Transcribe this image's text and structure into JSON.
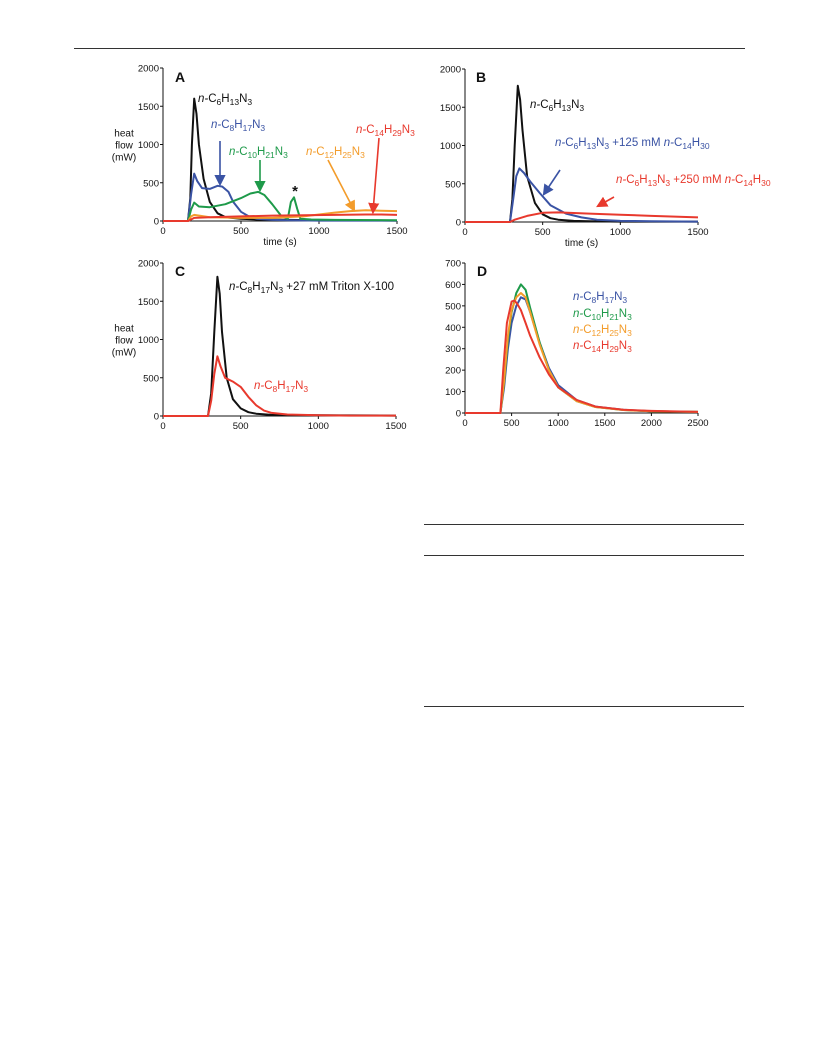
{
  "page": {
    "rules": [
      "top-rule",
      "table-rule-1",
      "table-rule-2",
      "table-rule-3"
    ]
  },
  "chart_data": [
    {
      "panel": "A",
      "type": "line",
      "xlabel": "time (s)",
      "ylabel": [
        "heat",
        "flow",
        "(mW)"
      ],
      "xlim": [
        0,
        1500
      ],
      "ylim": [
        0,
        2000
      ],
      "xticks": [
        0,
        500,
        1000,
        1500
      ],
      "yticks": [
        0,
        500,
        1000,
        1500,
        2000
      ],
      "annotation": "*",
      "series": [
        {
          "name": "n-C6H13N3",
          "color": "#111111",
          "label": [
            {
              "t": "n-",
              "i": true
            },
            {
              "t": "C"
            },
            {
              "t": "6",
              "s": true
            },
            {
              "t": "H"
            },
            {
              "t": "13",
              "s": true
            },
            {
              "t": "N"
            },
            {
              "t": "3",
              "s": true
            }
          ],
          "x": [
            0,
            160,
            175,
            185,
            200,
            215,
            230,
            260,
            300,
            350,
            400,
            500,
            600,
            800,
            1000,
            1500
          ],
          "y": [
            0,
            0,
            300,
            1000,
            1600,
            1400,
            1000,
            550,
            250,
            100,
            50,
            30,
            20,
            15,
            10,
            5
          ]
        },
        {
          "name": "n-C8H17N3",
          "color": "#3a53a4",
          "label": [
            {
              "t": "n-",
              "i": true
            },
            {
              "t": "C"
            },
            {
              "t": "8",
              "s": true
            },
            {
              "t": "H"
            },
            {
              "t": "17",
              "s": true
            },
            {
              "t": "N"
            },
            {
              "t": "3",
              "s": true
            }
          ],
          "x": [
            0,
            160,
            180,
            200,
            220,
            250,
            300,
            350,
            380,
            420,
            450,
            500,
            550,
            600,
            700,
            800,
            1000,
            1500
          ],
          "y": [
            0,
            0,
            350,
            620,
            520,
            430,
            420,
            460,
            450,
            380,
            250,
            120,
            60,
            30,
            15,
            10,
            5,
            5
          ]
        },
        {
          "name": "n-C10H21N3",
          "color": "#1e9a4a",
          "label": [
            {
              "t": "n-",
              "i": true
            },
            {
              "t": "C"
            },
            {
              "t": "10",
              "s": true
            },
            {
              "t": "H"
            },
            {
              "t": "21",
              "s": true
            },
            {
              "t": "N"
            },
            {
              "t": "3",
              "s": true
            }
          ],
          "x": [
            0,
            160,
            180,
            200,
            230,
            300,
            400,
            500,
            560,
            610,
            650,
            700,
            760,
            800,
            820,
            840,
            860,
            880,
            950,
            1100,
            1500
          ],
          "y": [
            0,
            0,
            150,
            240,
            190,
            180,
            220,
            300,
            360,
            380,
            340,
            220,
            60,
            30,
            250,
            310,
            160,
            30,
            20,
            15,
            10
          ]
        },
        {
          "name": "n-C12H25N3",
          "color": "#f39c2b",
          "label": [
            {
              "t": "n-",
              "i": true
            },
            {
              "t": "C"
            },
            {
              "t": "12",
              "s": true
            },
            {
              "t": "H"
            },
            {
              "t": "25",
              "s": true
            },
            {
              "t": "N"
            },
            {
              "t": "3",
              "s": true
            }
          ],
          "x": [
            0,
            160,
            180,
            200,
            300,
            500,
            700,
            900,
            1100,
            1200,
            1300,
            1400,
            1500
          ],
          "y": [
            0,
            0,
            60,
            80,
            50,
            40,
            40,
            60,
            110,
            130,
            140,
            135,
            130
          ]
        },
        {
          "name": "n-C14H29N3",
          "color": "#e8392d",
          "label": [
            {
              "t": "n-",
              "i": true
            },
            {
              "t": "C"
            },
            {
              "t": "14",
              "s": true
            },
            {
              "t": "H"
            },
            {
              "t": "29",
              "s": true
            },
            {
              "t": "N"
            },
            {
              "t": "3",
              "s": true
            }
          ],
          "x": [
            0,
            160,
            200,
            300,
            500,
            700,
            900,
            1100,
            1300,
            1400,
            1500
          ],
          "y": [
            0,
            0,
            40,
            50,
            60,
            70,
            75,
            80,
            85,
            85,
            80
          ]
        }
      ]
    },
    {
      "panel": "B",
      "type": "line",
      "xlabel": "time (s)",
      "ylabel": [],
      "xlim": [
        0,
        1500
      ],
      "ylim": [
        0,
        2000
      ],
      "xticks": [
        0,
        500,
        1000,
        1500
      ],
      "yticks": [
        0,
        500,
        1000,
        1500,
        2000
      ],
      "series": [
        {
          "name": "n-C6H13N3",
          "color": "#111111",
          "label": [
            {
              "t": "n-",
              "i": true
            },
            {
              "t": "C"
            },
            {
              "t": "6",
              "s": true
            },
            {
              "t": "H"
            },
            {
              "t": "13",
              "s": true
            },
            {
              "t": "N"
            },
            {
              "t": "3",
              "s": true
            }
          ],
          "x": [
            0,
            290,
            305,
            320,
            340,
            355,
            370,
            400,
            450,
            500,
            550,
            600,
            700,
            800,
            1000,
            1500
          ],
          "y": [
            0,
            0,
            300,
            1000,
            1780,
            1600,
            1200,
            600,
            250,
            100,
            50,
            30,
            15,
            10,
            5,
            5
          ]
        },
        {
          "name": "n-C6H13N3 + 125 mM n-C14H30",
          "color": "#3a53a4",
          "label": [
            {
              "t": "n-",
              "i": true
            },
            {
              "t": "C"
            },
            {
              "t": "6",
              "s": true
            },
            {
              "t": "H"
            },
            {
              "t": "13",
              "s": true
            },
            {
              "t": "N"
            },
            {
              "t": "3",
              "s": true
            },
            {
              "t": " +"
            },
            {
              "br": true
            },
            {
              "t": "125 mM "
            },
            {
              "t": "n-",
              "i": true
            },
            {
              "t": "C"
            },
            {
              "t": "14",
              "s": true
            },
            {
              "t": "H"
            },
            {
              "t": "30",
              "s": true
            }
          ],
          "x": [
            0,
            290,
            310,
            330,
            350,
            380,
            420,
            480,
            550,
            650,
            750,
            850,
            1000,
            1200,
            1500
          ],
          "y": [
            0,
            0,
            300,
            600,
            700,
            640,
            530,
            380,
            220,
            110,
            60,
            30,
            15,
            10,
            5
          ]
        },
        {
          "name": "n-C6H13N3 + 250 mM n-C14H30",
          "color": "#e8392d",
          "label": [
            {
              "t": "n-",
              "i": true
            },
            {
              "t": "C"
            },
            {
              "t": "6",
              "s": true
            },
            {
              "t": "H"
            },
            {
              "t": "13",
              "s": true
            },
            {
              "t": "N"
            },
            {
              "t": "3",
              "s": true
            },
            {
              "t": " +"
            },
            {
              "br": true
            },
            {
              "t": "250 mM "
            },
            {
              "t": "n-",
              "i": true
            },
            {
              "t": "C"
            },
            {
              "t": "14",
              "s": true
            },
            {
              "t": "H"
            },
            {
              "t": "30",
              "s": true
            }
          ],
          "x": [
            0,
            290,
            320,
            400,
            500,
            600,
            800,
            1000,
            1200,
            1500
          ],
          "y": [
            0,
            0,
            30,
            80,
            120,
            125,
            110,
            95,
            80,
            60
          ]
        }
      ]
    },
    {
      "panel": "C",
      "type": "line",
      "xlabel": "",
      "ylabel": [
        "heat",
        "flow",
        "(mW)"
      ],
      "xlim": [
        0,
        1500
      ],
      "ylim": [
        0,
        2000
      ],
      "xticks": [
        0,
        500,
        1000,
        1500
      ],
      "yticks": [
        0,
        500,
        1000,
        1500,
        2000
      ],
      "series": [
        {
          "name": "n-C8H17N3 + 27 mM Triton X-100",
          "color": "#111111",
          "label": [
            {
              "t": "n-",
              "i": true
            },
            {
              "t": "C"
            },
            {
              "t": "8",
              "s": true
            },
            {
              "t": "H"
            },
            {
              "t": "17",
              "s": true
            },
            {
              "t": "N"
            },
            {
              "t": "3",
              "s": true
            },
            {
              "t": " +"
            },
            {
              "br": true
            },
            {
              "t": "27 mM Triton X-100"
            }
          ],
          "x": [
            0,
            290,
            310,
            330,
            350,
            365,
            380,
            410,
            450,
            500,
            550,
            600,
            700,
            1000,
            1500
          ],
          "y": [
            0,
            0,
            300,
            1100,
            1820,
            1600,
            1100,
            500,
            220,
            100,
            50,
            30,
            15,
            10,
            5
          ]
        },
        {
          "name": "n-C8H17N3",
          "color": "#e8392d",
          "label": [
            {
              "t": "n-",
              "i": true
            },
            {
              "t": "C"
            },
            {
              "t": "8",
              "s": true
            },
            {
              "t": "H"
            },
            {
              "t": "17",
              "s": true
            },
            {
              "t": "N"
            },
            {
              "t": "3",
              "s": true
            }
          ],
          "x": [
            0,
            290,
            310,
            330,
            350,
            370,
            400,
            450,
            500,
            550,
            600,
            650,
            700,
            800,
            1000,
            1200,
            1500
          ],
          "y": [
            0,
            0,
            200,
            550,
            780,
            650,
            500,
            450,
            380,
            250,
            140,
            70,
            40,
            20,
            10,
            5,
            5
          ]
        }
      ]
    },
    {
      "panel": "D",
      "type": "line",
      "xlabel": "",
      "ylabel": [],
      "xlim": [
        0,
        2500
      ],
      "ylim": [
        0,
        700
      ],
      "xticks": [
        0,
        500,
        1000,
        1500,
        2000,
        2500
      ],
      "yticks": [
        0,
        100,
        200,
        300,
        400,
        500,
        600,
        700
      ],
      "series": [
        {
          "name": "n-C8H17N3",
          "color": "#3a53a4",
          "label": [
            {
              "t": "n-",
              "i": true
            },
            {
              "t": "C"
            },
            {
              "t": "8",
              "s": true
            },
            {
              "t": "H"
            },
            {
              "t": "17",
              "s": true
            },
            {
              "t": "N"
            },
            {
              "t": "3",
              "s": true
            }
          ],
          "x": [
            0,
            380,
            420,
            460,
            500,
            550,
            600,
            650,
            700,
            800,
            900,
            1000,
            1200,
            1400,
            1700,
            2000,
            2500
          ],
          "y": [
            0,
            0,
            120,
            300,
            420,
            500,
            540,
            530,
            470,
            330,
            210,
            130,
            60,
            30,
            15,
            8,
            5
          ]
        },
        {
          "name": "n-C10H21N3",
          "color": "#1e9a4a",
          "label": [
            {
              "t": "n-",
              "i": true
            },
            {
              "t": "C"
            },
            {
              "t": "10",
              "s": true
            },
            {
              "t": "H"
            },
            {
              "t": "21",
              "s": true
            },
            {
              "t": "N"
            },
            {
              "t": "3",
              "s": true
            }
          ],
          "x": [
            0,
            380,
            420,
            460,
            500,
            550,
            600,
            650,
            700,
            800,
            900,
            1000,
            1200,
            1400,
            1700,
            2000,
            2500
          ],
          "y": [
            0,
            0,
            140,
            340,
            470,
            560,
            600,
            575,
            490,
            330,
            200,
            120,
            55,
            28,
            14,
            8,
            5
          ]
        },
        {
          "name": "n-C12H25N3",
          "color": "#f39c2b",
          "label": [
            {
              "t": "n-",
              "i": true
            },
            {
              "t": "C"
            },
            {
              "t": "12",
              "s": true
            },
            {
              "t": "H"
            },
            {
              "t": "25",
              "s": true
            },
            {
              "t": "N"
            },
            {
              "t": "3",
              "s": true
            }
          ],
          "x": [
            0,
            380,
            420,
            460,
            500,
            550,
            600,
            650,
            700,
            800,
            900,
            1000,
            1200,
            1400,
            1700,
            2000,
            2500
          ],
          "y": [
            0,
            0,
            150,
            360,
            480,
            540,
            560,
            540,
            470,
            320,
            200,
            120,
            55,
            28,
            14,
            8,
            5
          ]
        },
        {
          "name": "n-C14H29N3",
          "color": "#e8392d",
          "label": [
            {
              "t": "n-",
              "i": true
            },
            {
              "t": "C"
            },
            {
              "t": "14",
              "s": true
            },
            {
              "t": "H"
            },
            {
              "t": "29",
              "s": true
            },
            {
              "t": "N"
            },
            {
              "t": "3",
              "s": true
            }
          ],
          "x": [
            0,
            380,
            410,
            450,
            500,
            530,
            560,
            600,
            650,
            700,
            800,
            900,
            1000,
            1200,
            1400,
            1700,
            2000,
            2500
          ],
          "y": [
            0,
            0,
            200,
            420,
            520,
            525,
            510,
            480,
            420,
            360,
            260,
            180,
            120,
            60,
            30,
            15,
            10,
            5
          ]
        }
      ]
    }
  ]
}
